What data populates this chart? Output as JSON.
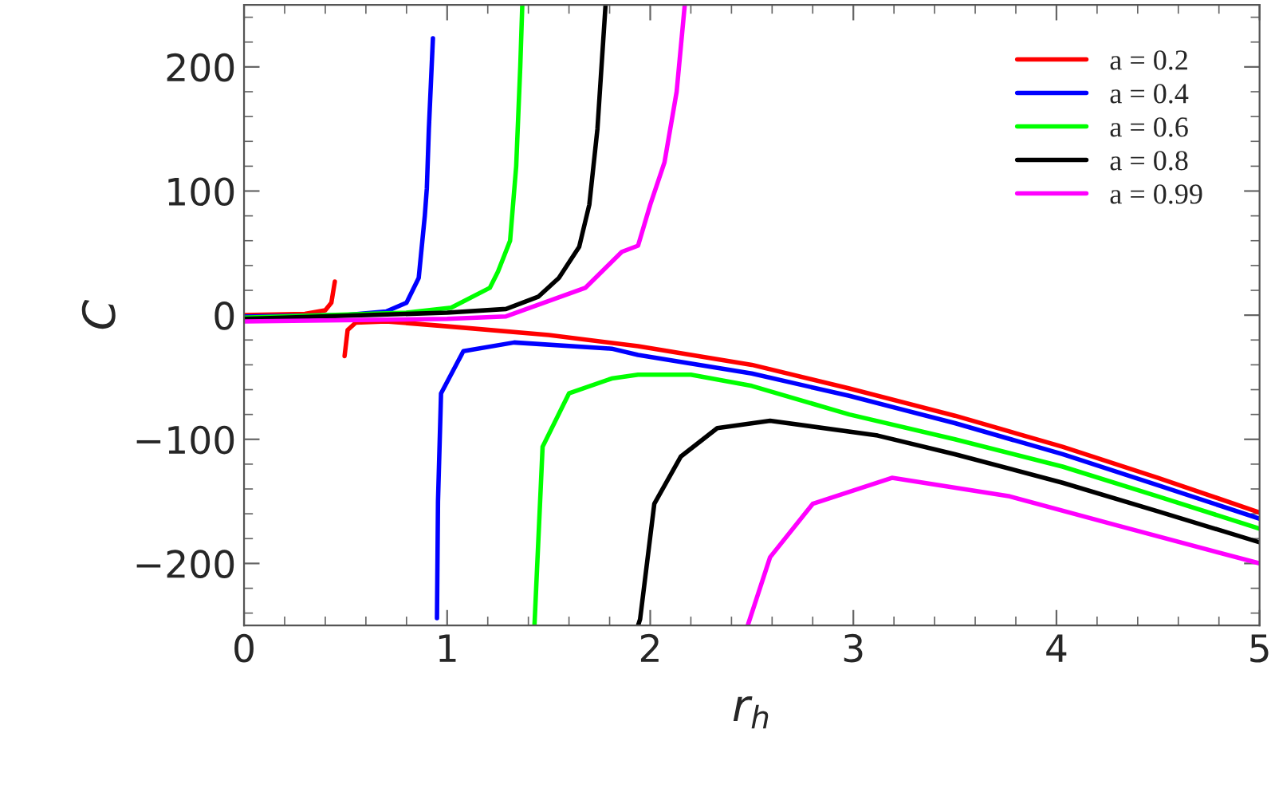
{
  "chart_data": {
    "type": "line",
    "xlabel": "r$_{h}$",
    "ylabel": "C",
    "xlim": [
      0,
      5
    ],
    "ylim": [
      -250,
      250
    ],
    "xticks": [
      0,
      1,
      2,
      3,
      4,
      5
    ],
    "yticks": [
      {
        "value": -200,
        "label": "−200"
      },
      {
        "value": -100,
        "label": "−100"
      },
      0,
      100,
      200
    ],
    "legend": "top right",
    "grid": false,
    "line_style": "solid",
    "series": [
      {
        "name": "a = 0.2",
        "color": "#ff0000",
        "x": [
          0,
          0.3,
          0.4,
          0.43,
          0.447,
          0.47,
          0.495,
          0.51,
          0.55,
          0.7,
          1.0,
          1.5,
          1.94,
          2.5,
          2.98,
          3.5,
          4.03,
          4.5,
          5
        ],
        "values": [
          0,
          1,
          4,
          10,
          27,
          null,
          -33,
          -12,
          -6,
          -5,
          -9,
          -16,
          -25,
          -40,
          -59,
          -81,
          -106,
          -131,
          -159
        ]
      },
      {
        "name": "a = 0.4",
        "color": "#0000ff",
        "x": [
          0,
          0.5,
          0.7,
          0.8,
          0.86,
          0.89,
          0.9,
          0.91,
          0.93,
          0.94,
          0.95,
          0.955,
          0.97,
          1.08,
          1.33,
          1.81,
          1.94,
          2.5,
          2.98,
          3.5,
          4.03,
          4.5,
          5
        ],
        "values": [
          -1,
          0,
          3,
          10,
          30,
          80,
          102,
          150,
          223,
          null,
          -244,
          -150,
          -63,
          -29,
          -22,
          -27,
          -32,
          -47,
          -65,
          -87,
          -112,
          -137,
          -164
        ]
      },
      {
        "name": "a = 0.6",
        "color": "#00ff00",
        "x": [
          0,
          0.8,
          1.02,
          1.21,
          1.25,
          1.31,
          1.34,
          1.36,
          1.37,
          1.4,
          1.43,
          1.47,
          1.6,
          1.81,
          1.94,
          2.2,
          2.5,
          2.98,
          3.5,
          4.03,
          4.5,
          5
        ],
        "values": [
          -2,
          2,
          6,
          22,
          35,
          60,
          120,
          200,
          250,
          null,
          -250,
          -106,
          -63,
          -51,
          -48,
          -48,
          -57,
          -80,
          -100,
          -122,
          -146,
          -172
        ]
      },
      {
        "name": "a = 0.8",
        "color": "#000000",
        "x": [
          0,
          1.0,
          1.29,
          1.45,
          1.55,
          1.65,
          1.7,
          1.74,
          1.78,
          1.85,
          1.94,
          1.95,
          2.02,
          2.15,
          2.33,
          2.59,
          3.12,
          3.5,
          4.03,
          4.5,
          5
        ],
        "values": [
          -3,
          2,
          5,
          15,
          30,
          55,
          89,
          150,
          250,
          null,
          -250,
          -245,
          -152,
          -114,
          -91,
          -85,
          -97,
          -112,
          -135,
          -158,
          -183
        ]
      },
      {
        "name": "a = 0.99",
        "color": "#ff00ff",
        "x": [
          0,
          1.0,
          1.29,
          1.68,
          1.86,
          1.94,
          2.0,
          2.07,
          2.13,
          2.17,
          2.3,
          2.48,
          2.5,
          2.59,
          2.8,
          3.19,
          3.77,
          4.29,
          5
        ],
        "values": [
          -5,
          -3,
          -1,
          22,
          51,
          56,
          89,
          123,
          180,
          250,
          null,
          -250,
          -240,
          -195,
          -152,
          -131,
          -146,
          -169,
          -200
        ]
      }
    ]
  }
}
